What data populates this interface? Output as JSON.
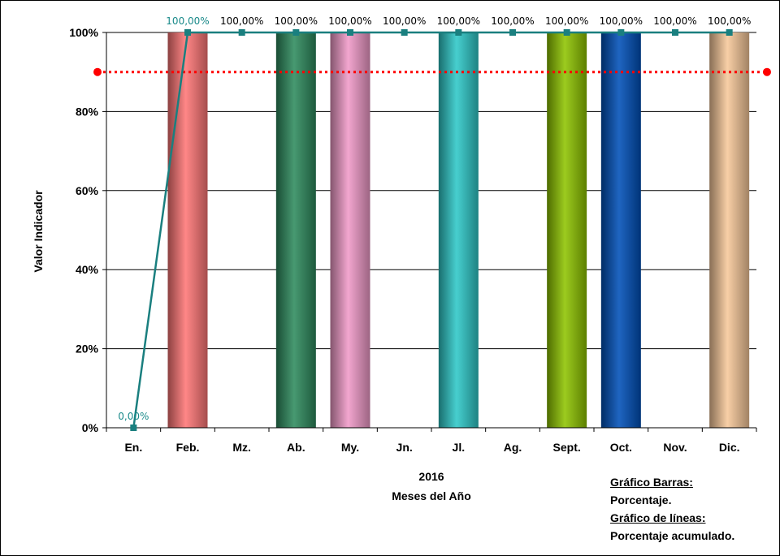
{
  "chart_data": {
    "type": "bar",
    "categories": [
      "En.",
      "Feb.",
      "Mz.",
      "Ab.",
      "My.",
      "Jn.",
      "Jl.",
      "Ag.",
      "Sept.",
      "Oct.",
      "Nov.",
      "Dic."
    ],
    "series": [
      {
        "type": "bar",
        "values": [
          0,
          100,
          0,
          100,
          100,
          0,
          100,
          0,
          100,
          100,
          0,
          100
        ],
        "colors": [
          "#cccccc",
          "#ff7777",
          "#cccccc",
          "#2e8b5e",
          "#f09ac8",
          "#cccccc",
          "#2ec8c8",
          "#cccccc",
          "#8ec400",
          "#0050b8",
          "#cccccc",
          "#f7c89a"
        ]
      },
      {
        "type": "line",
        "values": [
          0,
          100,
          100,
          100,
          100,
          100,
          100,
          100,
          100,
          100,
          100,
          100
        ],
        "labels": [
          "0,00%",
          "100,00%",
          "100,00%",
          "100,00%",
          "100,00%",
          "100,00%",
          "100,00%",
          "100,00%",
          "100,00%",
          "100,00%",
          "100,00%",
          "100,00%"
        ],
        "color": "#1a7f7f"
      }
    ],
    "reference_line": {
      "value": 90,
      "color": "#ff0000",
      "style": "dotted"
    },
    "yticks": [
      "0%",
      "20%",
      "40%",
      "60%",
      "80%",
      "100%"
    ],
    "ylim": [
      0,
      100
    ],
    "ylabel": "Valor Indicador",
    "xlabel_year": "2016",
    "xlabel": "Meses del Año",
    "grid": true
  },
  "notes": {
    "bar_title": "Gráfico Barras:",
    "bar_desc": "Porcentaje.",
    "line_title": "Gráfico de líneas:",
    "line_desc": "Porcentaje acumulado."
  }
}
